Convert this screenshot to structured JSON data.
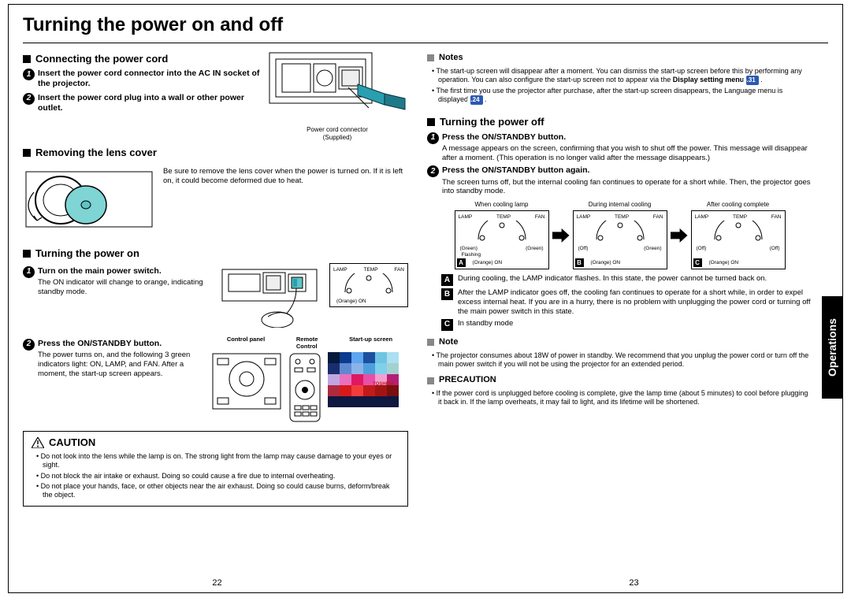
{
  "page_title": "Turning the power on and off",
  "side_tab": "Operations",
  "page_left": "22",
  "page_right": "23",
  "left": {
    "s1": {
      "heading": "Connecting the power cord",
      "step1": "Insert the power cord connector into the AC IN socket of the projector.",
      "step2": "Insert the power cord plug into a wall or other power outlet.",
      "conn_caption": "Power cord connector\n(Supplied)"
    },
    "s2": {
      "heading": "Removing the lens cover",
      "desc": "Be sure to remove the lens cover when the power is turned on. If it is left on, it could become deformed due to heat."
    },
    "s3": {
      "heading": "Turning the power on",
      "step1_title": "Turn on the main power switch.",
      "step1_desc": "The ON indicator will change to orange, indicating standby mode.",
      "step2_title": "Press the ON/STANDBY button.",
      "step2_desc": "The power turns on, and the following 3 green indicators light: ON, LAMP, and FAN. After a moment, the start-up screen appears.",
      "labels": {
        "control_panel": "Control panel",
        "remote": "Remote\nControl",
        "startup": "Start-up screen"
      }
    },
    "caution": {
      "heading": "CAUTION",
      "items": [
        "Do not look into the lens while the lamp is on.  The strong light from the lamp may cause damage to your eyes or sight.",
        "Do not block the air intake or exhaust. Doing so could cause a fire due to internal overheating.",
        "Do not place your hands, face, or other objects near the air exhaust. Doing so could cause burns, deform/break the object."
      ]
    }
  },
  "right": {
    "notes1": {
      "heading": "Notes",
      "item1_pre": "The start-up screen will disappear after a moment. You can dismiss the start-up screen before this by performing any operation. You can also configure the start-up screen not to appear via the ",
      "item1_bold": "Display setting menu",
      "ref1": "p.31",
      "item2_pre": "The first time you use the projector after purchase, after the start-up screen disappears, the Language menu is displayed ",
      "ref2": "p.24"
    },
    "s4": {
      "heading": "Turning the power off",
      "step1_title": "Press the ON/STANDBY button.",
      "step1_desc": "A message appears on the screen, confirming that you wish to shut off the power. This message will disappear after a moment. (This operation is no longer valid after the message disappears.)",
      "step2_title": "Press the ON/STANDBY button again.",
      "step2_desc": "The screen turns off, but the internal cooling fan continues to operate for a short while. Then, the projector goes into standby mode.",
      "states": {
        "a_caption": "When cooling lamp",
        "b_caption": "During internal cooling",
        "c_caption": "After cooling complete",
        "lamp": "LAMP",
        "temp": "TEMP",
        "fan": "FAN",
        "a_l1": "(Green)",
        "a_l2": "(Green)",
        "a_on": "Flashing",
        "a_onc": "(Orange) ON",
        "b_l1": "(Off)",
        "b_l2": "(Green)",
        "b_onc": "(Orange) ON",
        "c_l1": "(Off)",
        "c_l2": "(Off)",
        "c_onc": "(Orange) ON"
      },
      "abc": {
        "a": "During cooling, the LAMP indicator flashes. In this state, the power cannot be turned back on.",
        "b": "After the LAMP indicator goes off, the cooling fan continues to operate for a short while, in order to expel excess internal heat. If you are in a hurry, there is no problem with unplugging the power cord or turning off the main power switch in this state.",
        "c": "In standby mode"
      }
    },
    "note2": {
      "heading": "Note",
      "item": "The projector consumes about 18W of power in standby. We recommend that you unplug the power cord or turn off the main power switch if you will not be using the projector for an extended period."
    },
    "precaution": {
      "heading": "PRECAUTION",
      "item": "If the power cord is unplugged before cooling is complete, give the lamp time (about 5 minutes) to cool before plugging it back in. If the lamp overheats, it may fail to light, and its lifetime will be shortened."
    }
  },
  "colors": {
    "lens": "#7fd4d4",
    "plug": "#2a9fb0",
    "switch": "#5fc4c4",
    "badge": "#2a5ab2",
    "pixels": [
      "#061a3a",
      "#0a3b8f",
      "#5fa5ef",
      "#1c4f9e",
      "#6fc4e2",
      "#acdff2",
      "#1a2d6f",
      "#5f88d0",
      "#8bb3e8",
      "#4f9edc",
      "#7fd0ec",
      "#a6d0d0",
      "#bfa6e0",
      "#e96fbf",
      "#de1862",
      "#e84fa6",
      "#f29fd0",
      "#b51f73",
      "#b02a3f",
      "#d41a1a",
      "#f23c3c",
      "#c11a1a",
      "#a21414",
      "#7a0f0f",
      "#0e1840",
      "#0e1840",
      "#0e1840",
      "#0e1840",
      "#0e1840",
      "#0e1840"
    ],
    "toshiba": "#c21a1a"
  }
}
